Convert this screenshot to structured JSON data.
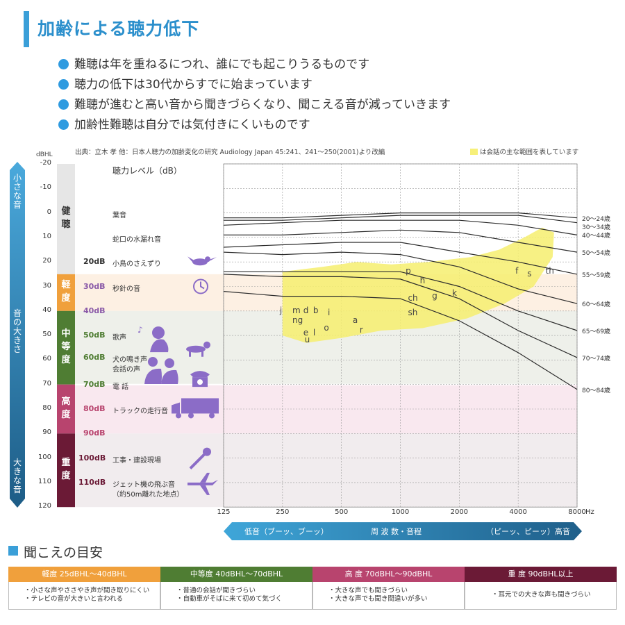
{
  "title": "加齢による聴力低下",
  "bullets": [
    "難聴は年を重ねるにつれ、誰にでも起こりうるものです",
    "聴力の低下は30代からすでに始まっています",
    "難聴が進むと高い音から聞きづらくなり、聞こえる音が減っていきます",
    "加齢性難聴は自分では気付きにくいものです"
  ],
  "source": "出典：立木 孝 他：日本人聴力の加齢変化の研究 Audiology Japan 45:241、241～250(2001)より改編",
  "legend_note": "は会話の主な範囲を表しています",
  "scale_labels": {
    "small": "小さな音",
    "mid": "音の大きさ",
    "large": "大きな音"
  },
  "categories": [
    {
      "label": "健聴",
      "color": "#e6e6e6",
      "text_color": "#333333"
    },
    {
      "label": "軽度",
      "color": "#f0a03c",
      "text_color": "#ffffff"
    },
    {
      "label": "中等度",
      "color": "#4f7d33",
      "text_color": "#ffffff"
    },
    {
      "label": "高度",
      "color": "#b8446e",
      "text_color": "#ffffff"
    },
    {
      "label": "重度",
      "color": "#6b1a36",
      "text_color": "#ffffff"
    }
  ],
  "chart_header": "聴力レベル（dB）",
  "sounds": [
    {
      "db": "",
      "name": "葉音"
    },
    {
      "db": "",
      "name": "蛇口の水漏れ音"
    },
    {
      "db": "20dB",
      "name": "小鳥のさえずり"
    },
    {
      "db": "30dB",
      "name": "秒針の音"
    },
    {
      "db": "40dB",
      "name": ""
    },
    {
      "db": "50dB",
      "name": "歌声"
    },
    {
      "db": "60dB",
      "name": "犬の鳴き声"
    },
    {
      "db": "",
      "name": "会話の声"
    },
    {
      "db": "70dB",
      "name": "電 話"
    },
    {
      "db": "80dB",
      "name": "トラックの走行音"
    },
    {
      "db": "90dB",
      "name": ""
    },
    {
      "db": "100dB",
      "name": "工事・建設現場"
    },
    {
      "db": "110dB",
      "name": "ジェット機の飛ぶ音"
    },
    {
      "db": "",
      "name": "（約50m離れた地点）"
    }
  ],
  "icons": [
    "bird-icon",
    "clock-icon",
    "singer-icon",
    "dog-icon",
    "couple-icon",
    "telephone-icon",
    "truck-icon",
    "drill-icon",
    "airplane-icon"
  ],
  "freq_band": {
    "low": "低音（ブーッ、ブーッ）",
    "mid": "周 波 数・音程",
    "high": "（ピーッ、ピーッ）高音",
    "unit": "Hz"
  },
  "chart_data": {
    "type": "line",
    "ylabel": "dBHL",
    "xlabel": "Hz",
    "y_reversed": true,
    "ylim": [
      -20,
      120
    ],
    "yticks": [
      -20,
      -10,
      0,
      10,
      20,
      30,
      40,
      50,
      60,
      70,
      80,
      90,
      100,
      110,
      120
    ],
    "x": [
      125,
      250,
      500,
      1000,
      2000,
      4000,
      8000
    ],
    "x_scale": "log",
    "series": [
      {
        "name": "20～24歳",
        "values": [
          2,
          2,
          1,
          0,
          0,
          0,
          2
        ]
      },
      {
        "name": "30～34歳",
        "values": [
          3,
          3,
          2,
          1,
          1,
          1,
          4
        ]
      },
      {
        "name": "40～44歳",
        "values": [
          5,
          4,
          3,
          3,
          3,
          5,
          9
        ]
      },
      {
        "name": "50～54歳",
        "values": [
          9,
          9,
          8,
          7,
          8,
          12,
          16
        ]
      },
      {
        "name": "55～59歳",
        "values": [
          14,
          13,
          12,
          12,
          16,
          20,
          25
        ]
      },
      {
        "name": "60～64歳",
        "values": [
          16,
          17,
          16,
          17,
          22,
          31,
          37
        ]
      },
      {
        "name": "65～69歳",
        "values": [
          24,
          24,
          24,
          24,
          30,
          40,
          48
        ]
      },
      {
        "name": "70～74歳",
        "values": [
          25,
          26,
          26,
          27,
          35,
          48,
          59
        ]
      },
      {
        "name": "80～84歳",
        "values": [
          32,
          34,
          34,
          35,
          44,
          57,
          72
        ]
      }
    ],
    "highlight": "会話の主な範囲",
    "phonemes": [
      {
        "t": "j",
        "x": 250,
        "y": 40
      },
      {
        "t": "m",
        "x": 290,
        "y": 40
      },
      {
        "t": "d",
        "x": 330,
        "y": 40
      },
      {
        "t": "b",
        "x": 370,
        "y": 40
      },
      {
        "t": "ng",
        "x": 290,
        "y": 44
      },
      {
        "t": "e",
        "x": 330,
        "y": 49
      },
      {
        "t": "l",
        "x": 370,
        "y": 49
      },
      {
        "t": "u",
        "x": 335,
        "y": 52
      },
      {
        "t": "i",
        "x": 440,
        "y": 41
      },
      {
        "t": "o",
        "x": 420,
        "y": 47
      },
      {
        "t": "a",
        "x": 590,
        "y": 44
      },
      {
        "t": "r",
        "x": 640,
        "y": 48
      },
      {
        "t": "p",
        "x": 1100,
        "y": 24
      },
      {
        "t": "h",
        "x": 1300,
        "y": 28
      },
      {
        "t": "ch",
        "x": 1130,
        "y": 35
      },
      {
        "t": "g",
        "x": 1500,
        "y": 34
      },
      {
        "t": "k",
        "x": 1900,
        "y": 33
      },
      {
        "t": "sh",
        "x": 1130,
        "y": 41
      },
      {
        "t": "f",
        "x": 4000,
        "y": 24
      },
      {
        "t": "s",
        "x": 4600,
        "y": 25
      },
      {
        "t": "th",
        "x": 5700,
        "y": 24
      }
    ]
  },
  "guide": {
    "title": "聞こえの目安",
    "columns": [
      {
        "head": "軽度  25dBHL～40dBHL",
        "color": "#f0a03c",
        "lines": [
          "・小さな声やささやき声が聞き取りにくい",
          "・テレビの音が大きいと言われる"
        ]
      },
      {
        "head": "中等度  40dBHL～70dBHL",
        "color": "#4f7d33",
        "lines": [
          "・普通の会話が聞きづらい",
          "・自動車がそばに来て初めて気づく"
        ]
      },
      {
        "head": "高 度  70dBHL～90dBHL",
        "color": "#b8446e",
        "lines": [
          "・大きな声でも聞きづらい",
          "・大きな声でも聞き間違いが多い"
        ]
      },
      {
        "head": "重 度  90dBHL以上",
        "color": "#6b1a36",
        "lines": [
          "・耳元での大きな声も聞きづらい"
        ]
      }
    ]
  }
}
